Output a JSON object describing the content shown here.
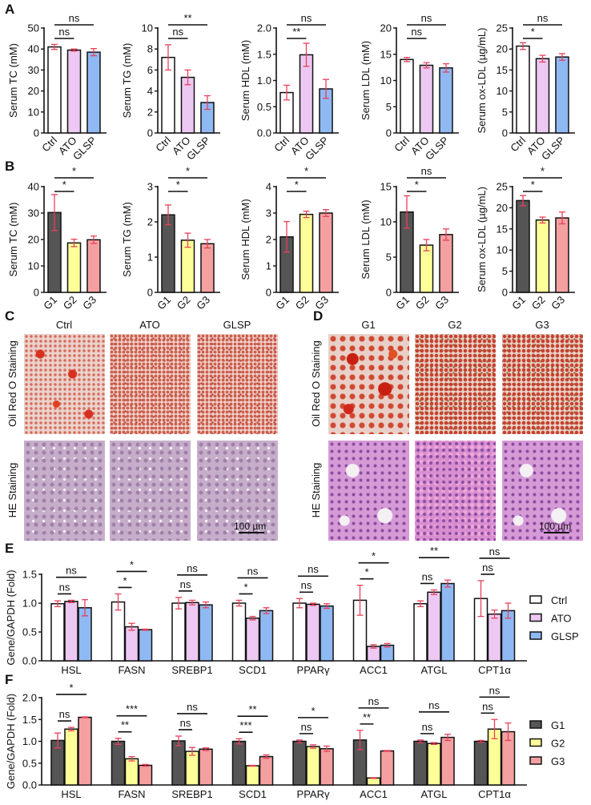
{
  "panel_labels": {
    "A": "A",
    "B": "B",
    "C": "C",
    "D": "D",
    "E": "E",
    "F": "F"
  },
  "colors": {
    "Ctrl": "#ffffff",
    "ATO": "#ecc8f2",
    "GLSP": "#8fb9f2",
    "G1": "#555555",
    "G2": "#ffff99",
    "G3": "#f4a0a0",
    "error": "#e8405a"
  },
  "chart_data": [
    {
      "panel": "A",
      "type": "bar",
      "ylabel": "Serum TC (mM)",
      "categories": [
        "Ctrl",
        "ATO",
        "GLSP"
      ],
      "values": [
        41,
        39.5,
        38.5
      ],
      "errors": [
        1.2,
        0.5,
        1.7
      ],
      "ylim": [
        0,
        50
      ],
      "yticks": [
        "0",
        "10",
        "20",
        "30",
        "40",
        "50"
      ],
      "significance": [
        {
          "from": 0,
          "to": 1,
          "label": "ns"
        },
        {
          "from": 0,
          "to": 2,
          "label": "ns"
        }
      ]
    },
    {
      "panel": "A",
      "type": "bar",
      "ylabel": "Serum TG (mM)",
      "categories": [
        "Ctrl",
        "ATO",
        "GLSP"
      ],
      "values": [
        7.2,
        5.3,
        2.9
      ],
      "errors": [
        1.2,
        0.7,
        0.65
      ],
      "ylim": [
        0,
        10
      ],
      "yticks": [
        "0",
        "2",
        "4",
        "6",
        "8",
        "10"
      ],
      "significance": [
        {
          "from": 0,
          "to": 1,
          "label": "ns"
        },
        {
          "from": 0,
          "to": 2,
          "label": "**"
        }
      ]
    },
    {
      "panel": "A",
      "type": "bar",
      "ylabel": "Serum HDL (mM)",
      "categories": [
        "Ctrl",
        "ATO",
        "GLSP"
      ],
      "values": [
        0.77,
        1.49,
        0.84
      ],
      "errors": [
        0.14,
        0.22,
        0.18
      ],
      "ylim": [
        0,
        2
      ],
      "yticks": [
        "0.0",
        "0.5",
        "1.0",
        "1.5",
        "2.0"
      ],
      "significance": [
        {
          "from": 0,
          "to": 1,
          "label": "**"
        },
        {
          "from": 0,
          "to": 2,
          "label": "ns"
        }
      ]
    },
    {
      "panel": "A",
      "type": "bar",
      "ylabel": "Serum LDL (mM)",
      "categories": [
        "Ctrl",
        "ATO",
        "GLSP"
      ],
      "values": [
        14,
        12.9,
        12.4
      ],
      "errors": [
        0.4,
        0.5,
        0.8
      ],
      "ylim": [
        0,
        20
      ],
      "yticks": [
        "0",
        "5",
        "10",
        "15",
        "20"
      ],
      "significance": [
        {
          "from": 0,
          "to": 1,
          "label": "ns"
        },
        {
          "from": 0,
          "to": 2,
          "label": "ns"
        }
      ]
    },
    {
      "panel": "A",
      "type": "bar",
      "ylabel": "Serum ox-LDL (µg/mL)",
      "categories": [
        "Ctrl",
        "ATO",
        "GLSP"
      ],
      "values": [
        20.7,
        17.7,
        18.1
      ],
      "errors": [
        0.8,
        0.8,
        0.8
      ],
      "ylim": [
        0,
        25
      ],
      "yticks": [
        "0",
        "5",
        "10",
        "15",
        "20",
        "25"
      ],
      "significance": [
        {
          "from": 0,
          "to": 1,
          "label": "*"
        },
        {
          "from": 0,
          "to": 2,
          "label": "ns"
        }
      ]
    },
    {
      "panel": "B",
      "type": "bar",
      "ylabel": "Serum TC (mM)",
      "categories": [
        "G1",
        "G2",
        "G3"
      ],
      "values": [
        30.2,
        18.7,
        19.9
      ],
      "errors": [
        6.8,
        1.4,
        1.4
      ],
      "ylim": [
        0,
        40
      ],
      "yticks": [
        "0",
        "10",
        "20",
        "30",
        "40"
      ],
      "significance": [
        {
          "from": 0,
          "to": 1,
          "label": "*"
        },
        {
          "from": 0,
          "to": 2,
          "label": "*"
        }
      ]
    },
    {
      "panel": "B",
      "type": "bar",
      "ylabel": "Serum TG (mM)",
      "categories": [
        "G1",
        "G2",
        "G3"
      ],
      "values": [
        2.2,
        1.48,
        1.38
      ],
      "errors": [
        0.28,
        0.2,
        0.12
      ],
      "ylim": [
        0,
        3
      ],
      "yticks": [
        "0",
        "1",
        "2",
        "3"
      ],
      "significance": [
        {
          "from": 0,
          "to": 1,
          "label": "*"
        },
        {
          "from": 0,
          "to": 2,
          "label": "*"
        }
      ]
    },
    {
      "panel": "B",
      "type": "bar",
      "ylabel": "Serum HDL (mM)",
      "categories": [
        "G1",
        "G2",
        "G3"
      ],
      "values": [
        2.1,
        2.95,
        3.0
      ],
      "errors": [
        0.58,
        0.12,
        0.13
      ],
      "ylim": [
        0,
        4
      ],
      "yticks": [
        "0",
        "1",
        "2",
        "3",
        "4"
      ],
      "significance": [
        {
          "from": 0,
          "to": 1,
          "label": "*"
        },
        {
          "from": 0,
          "to": 2,
          "label": "*"
        }
      ]
    },
    {
      "panel": "B",
      "type": "bar",
      "ylabel": "Serum LDL (mM)",
      "categories": [
        "G1",
        "G2",
        "G3"
      ],
      "values": [
        11.4,
        6.7,
        8.2
      ],
      "errors": [
        2.3,
        0.8,
        0.8
      ],
      "ylim": [
        0,
        15
      ],
      "yticks": [
        "0",
        "5",
        "10",
        "15"
      ],
      "significance": [
        {
          "from": 0,
          "to": 1,
          "label": "*"
        },
        {
          "from": 0,
          "to": 2,
          "label": "ns"
        }
      ]
    },
    {
      "panel": "B",
      "type": "bar",
      "ylabel": "Serum ox-LDL (µg/mL)",
      "categories": [
        "G1",
        "G2",
        "G3"
      ],
      "values": [
        21.7,
        17.1,
        17.6
      ],
      "errors": [
        1.2,
        0.7,
        1.4
      ],
      "ylim": [
        0,
        25
      ],
      "yticks": [
        "0",
        "5",
        "10",
        "15",
        "20",
        "25"
      ],
      "significance": [
        {
          "from": 0,
          "to": 1,
          "label": "*"
        },
        {
          "from": 0,
          "to": 2,
          "label": "*"
        }
      ]
    },
    {
      "panel": "E",
      "type": "bar",
      "ylabel": "Gene/GAPDH (Fold)",
      "categories": [
        "HSL",
        "FASN",
        "SREBP1",
        "SCD1",
        "PPARγ",
        "ACC1",
        "ATGL",
        "CPT1α"
      ],
      "ylim": [
        0,
        1.5
      ],
      "yticks": [
        "0.0",
        "0.5",
        "1.0",
        "1.5"
      ],
      "legend": "right",
      "series": [
        {
          "name": "Ctrl",
          "values": [
            0.99,
            1.02,
            1.0,
            1.0,
            1.0,
            1.05,
            0.99,
            1.08
          ],
          "errors": [
            0.05,
            0.14,
            0.1,
            0.05,
            0.08,
            0.26,
            0.05,
            0.31
          ]
        },
        {
          "name": "ATO",
          "values": [
            1.03,
            0.59,
            1.01,
            0.74,
            0.98,
            0.25,
            1.19,
            0.81
          ],
          "errors": [
            0.02,
            0.06,
            0.04,
            0.03,
            0.02,
            0.03,
            0.04,
            0.07
          ]
        },
        {
          "name": "GLSP",
          "values": [
            0.92,
            0.54,
            0.97,
            0.87,
            0.95,
            0.27,
            1.34,
            0.87
          ],
          "errors": [
            0.14,
            0.01,
            0.05,
            0.05,
            0.04,
            0.03,
            0.06,
            0.13
          ]
        }
      ],
      "significance": [
        [
          "ns",
          "ns"
        ],
        [
          "*",
          "*"
        ],
        [
          "ns",
          "ns"
        ],
        [
          "*",
          "ns"
        ],
        [
          "ns",
          "ns"
        ],
        [
          "*",
          "*"
        ],
        [
          "ns",
          "**"
        ],
        [
          "ns",
          "ns"
        ]
      ]
    },
    {
      "panel": "F",
      "type": "bar",
      "ylabel": "Gene/GAPDH (Fold)",
      "categories": [
        "HSL",
        "FASN",
        "SREBP1",
        "SCD1",
        "PPARγ",
        "ACC1",
        "ATGL",
        "CPT1α"
      ],
      "ylim": [
        0,
        2.0
      ],
      "yticks": [
        "0.0",
        "0.5",
        "1.0",
        "1.5",
        "2.0"
      ],
      "legend": "right",
      "series": [
        {
          "name": "G1",
          "values": [
            1.02,
            1.0,
            1.01,
            1.0,
            1.0,
            1.03,
            1.0,
            1.0
          ],
          "errors": [
            0.17,
            0.07,
            0.11,
            0.06,
            0.03,
            0.22,
            0.03,
            0.02
          ]
        },
        {
          "name": "G2",
          "values": [
            1.28,
            0.6,
            0.77,
            0.44,
            0.88,
            0.16,
            0.95,
            1.28
          ],
          "errors": [
            0.04,
            0.05,
            0.09,
            0.01,
            0.04,
            0.01,
            0.02,
            0.22
          ]
        },
        {
          "name": "G3",
          "values": [
            1.55,
            0.45,
            0.82,
            0.65,
            0.83,
            0.78,
            1.09,
            1.22
          ],
          "errors": [
            0.01,
            0.02,
            0.03,
            0.04,
            0.06,
            0.01,
            0.07,
            0.2
          ]
        }
      ],
      "significance": [
        [
          "ns",
          "*"
        ],
        [
          "**",
          "***"
        ],
        [
          "ns",
          "ns"
        ],
        [
          "***",
          "**"
        ],
        [
          "ns",
          "*"
        ],
        [
          "**",
          "ns"
        ],
        [
          "ns",
          "ns"
        ],
        [
          "ns",
          "ns"
        ]
      ]
    }
  ],
  "histology": {
    "C": {
      "columns": [
        "Ctrl",
        "ATO",
        "GLSP"
      ],
      "rows": [
        "Oil Red O Staining",
        "HE Staining"
      ],
      "scale_bar": "100 µm"
    },
    "D": {
      "columns": [
        "G1",
        "G2",
        "G3"
      ],
      "rows": [
        "Oil Red O Staining",
        "HE Staining"
      ],
      "scale_bar": "100 µm"
    }
  }
}
